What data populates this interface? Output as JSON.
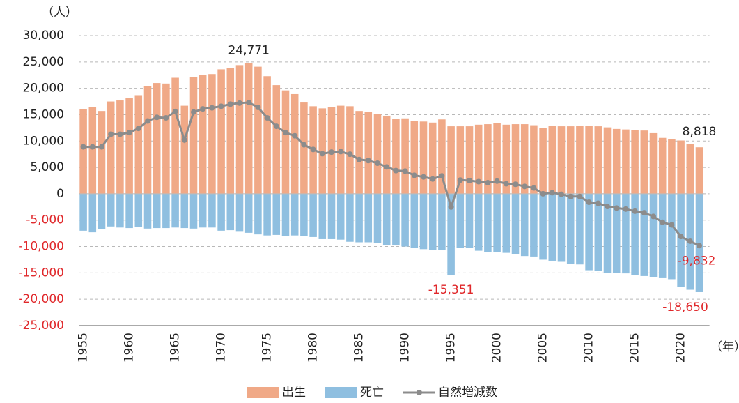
{
  "chart_data": {
    "type": "bar_line",
    "y_unit": "（人）",
    "x_unit": "（年）",
    "categories": [
      "1955",
      null,
      null,
      null,
      null,
      "1960",
      null,
      null,
      null,
      null,
      "1965",
      null,
      null,
      null,
      null,
      "1970",
      null,
      null,
      null,
      null,
      "1975",
      null,
      null,
      null,
      null,
      "1980",
      null,
      null,
      null,
      null,
      "1985",
      null,
      null,
      null,
      null,
      "1990",
      null,
      null,
      null,
      null,
      "1995",
      null,
      null,
      null,
      null,
      "2000",
      null,
      null,
      null,
      null,
      "2005",
      null,
      null,
      null,
      null,
      "2010",
      null,
      null,
      null,
      null,
      "2015",
      null,
      null,
      null,
      null,
      "2020",
      null,
      null
    ],
    "series": [
      {
        "name": "出生",
        "color": "#f0a987",
        "kind": "bar",
        "values": [
          16000,
          16400,
          15700,
          17500,
          17700,
          18100,
          18700,
          20400,
          21000,
          20900,
          22000,
          16700,
          22100,
          22500,
          22700,
          23600,
          23900,
          24400,
          24771,
          24100,
          22300,
          20600,
          19600,
          18900,
          17300,
          16600,
          16200,
          16500,
          16700,
          16600,
          15700,
          15500,
          15100,
          14800,
          14200,
          14300,
          13800,
          13700,
          13500,
          14100,
          12800,
          12800,
          12800,
          13100,
          13200,
          13400,
          13100,
          13200,
          13200,
          13000,
          12500,
          12900,
          12800,
          12800,
          12900,
          12900,
          12800,
          12600,
          12300,
          12200,
          12100,
          12000,
          11500,
          10600,
          10400,
          10100,
          9400,
          8818
        ],
        "value_labels": [
          null,
          null,
          null,
          null,
          null,
          null,
          null,
          null,
          null,
          null,
          null,
          null,
          null,
          null,
          null,
          null,
          null,
          null,
          "24,771",
          null,
          null,
          null,
          null,
          null,
          null,
          null,
          null,
          null,
          null,
          null,
          null,
          null,
          null,
          null,
          null,
          null,
          null,
          null,
          null,
          null,
          null,
          null,
          null,
          null,
          null,
          null,
          null,
          null,
          null,
          null,
          null,
          null,
          null,
          null,
          null,
          null,
          null,
          null,
          null,
          null,
          null,
          null,
          null,
          null,
          null,
          null,
          null,
          "8,818"
        ]
      },
      {
        "name": "死亡",
        "color": "#8fbfe0",
        "kind": "bar",
        "values": [
          -7000,
          -7300,
          -6700,
          -6200,
          -6400,
          -6500,
          -6300,
          -6600,
          -6500,
          -6500,
          -6400,
          -6500,
          -6600,
          -6400,
          -6400,
          -7000,
          -6900,
          -7200,
          -7400,
          -7700,
          -7900,
          -7800,
          -8000,
          -7900,
          -8000,
          -8200,
          -8600,
          -8600,
          -8700,
          -9100,
          -9200,
          -9200,
          -9300,
          -9700,
          -9800,
          -10000,
          -10300,
          -10500,
          -10700,
          -10700,
          -15351,
          -10200,
          -10300,
          -10800,
          -11100,
          -11000,
          -11200,
          -11400,
          -11800,
          -11900,
          -12500,
          -12700,
          -12900,
          -13300,
          -13400,
          -14500,
          -14600,
          -15000,
          -15000,
          -15100,
          -15400,
          -15600,
          -15800,
          -16000,
          -16200,
          -17600,
          -18200,
          -18650
        ],
        "value_labels": [
          null,
          null,
          null,
          null,
          null,
          null,
          null,
          null,
          null,
          null,
          null,
          null,
          null,
          null,
          null,
          null,
          null,
          null,
          null,
          null,
          null,
          null,
          null,
          null,
          null,
          null,
          null,
          null,
          null,
          null,
          null,
          null,
          null,
          null,
          null,
          null,
          null,
          null,
          null,
          null,
          "-15,351",
          null,
          null,
          null,
          null,
          null,
          null,
          null,
          null,
          null,
          null,
          null,
          null,
          null,
          null,
          null,
          null,
          null,
          null,
          null,
          null,
          null,
          null,
          null,
          null,
          null,
          null,
          "-18,650"
        ]
      },
      {
        "name": "自然増減数",
        "color": "#8c8c8c",
        "kind": "line",
        "values": [
          8900,
          8900,
          8900,
          11300,
          11300,
          11600,
          12400,
          13800,
          14500,
          14400,
          15600,
          10200,
          15500,
          16100,
          16300,
          16600,
          17000,
          17200,
          17300,
          16400,
          14400,
          12800,
          11600,
          11000,
          9300,
          8400,
          7600,
          7900,
          8000,
          7500,
          6500,
          6300,
          5800,
          5100,
          4400,
          4300,
          3500,
          3200,
          2800,
          3400,
          -2500,
          2600,
          2500,
          2300,
          2100,
          2400,
          1900,
          1800,
          1400,
          1100,
          0,
          200,
          -100,
          -500,
          -500,
          -1600,
          -1800,
          -2400,
          -2700,
          -2900,
          -3300,
          -3600,
          -4300,
          -5400,
          -5900,
          -8100,
          -9000,
          -9832
        ],
        "value_labels": [
          null,
          null,
          null,
          null,
          null,
          null,
          null,
          null,
          null,
          null,
          null,
          null,
          null,
          null,
          null,
          null,
          null,
          null,
          null,
          null,
          null,
          null,
          null,
          null,
          null,
          null,
          null,
          null,
          null,
          null,
          null,
          null,
          null,
          null,
          null,
          null,
          null,
          null,
          null,
          null,
          null,
          null,
          null,
          null,
          null,
          null,
          null,
          null,
          null,
          null,
          null,
          null,
          null,
          null,
          null,
          null,
          null,
          null,
          null,
          null,
          null,
          null,
          null,
          null,
          null,
          null,
          null,
          "-9,832"
        ]
      }
    ],
    "ylim": [
      -25000,
      30000
    ],
    "yticks": [
      {
        "value": -25000,
        "label": "-25,000"
      },
      {
        "value": -20000,
        "label": "-20,000"
      },
      {
        "value": -15000,
        "label": "-15,000"
      },
      {
        "value": -10000,
        "label": "-10,000"
      },
      {
        "value": -5000,
        "label": "-5,000"
      },
      0,
      {
        "value": 5000,
        "label": "5,000"
      },
      {
        "value": 10000,
        "label": "10,000"
      },
      {
        "value": 15000,
        "label": "15,000"
      },
      {
        "value": 20000,
        "label": "20,000"
      },
      {
        "value": 25000,
        "label": "25,000"
      },
      {
        "value": 30000,
        "label": "30,000"
      }
    ],
    "grid": true,
    "legend": "bottom"
  }
}
